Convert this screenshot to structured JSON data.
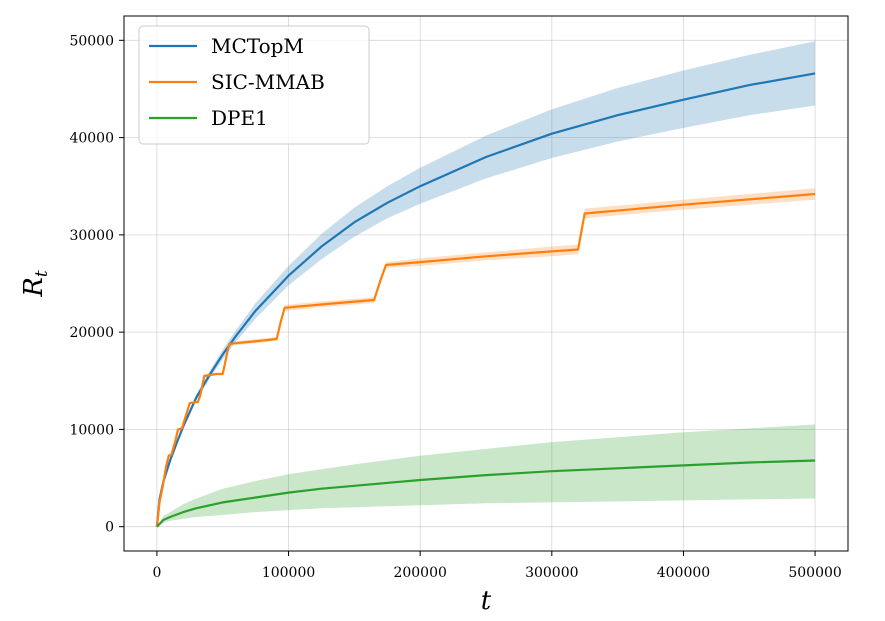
{
  "chart_data": {
    "type": "line",
    "xlabel": "t",
    "ylabel_main": "R",
    "ylabel_sub": "t",
    "xlim": [
      -25000,
      525000
    ],
    "ylim": [
      -2500,
      52500
    ],
    "xticks": [
      0,
      100000,
      200000,
      300000,
      400000,
      500000
    ],
    "xtick_labels": [
      "0",
      "100000",
      "200000",
      "300000",
      "400000",
      "500000"
    ],
    "yticks": [
      0,
      10000,
      20000,
      30000,
      40000,
      50000
    ],
    "ytick_labels": [
      "0",
      "10000",
      "20000",
      "30000",
      "40000",
      "50000"
    ],
    "grid": true,
    "legend_position": "top-left",
    "series": [
      {
        "name": "MCTopM",
        "color": "#1f77b4",
        "x": [
          0,
          2000,
          5000,
          10000,
          15000,
          20000,
          30000,
          40000,
          50000,
          60000,
          75000,
          100000,
          125000,
          150000,
          175000,
          200000,
          250000,
          300000,
          350000,
          400000,
          450000,
          500000
        ],
        "y": [
          0,
          2800,
          4700,
          6800,
          8600,
          10300,
          13300,
          15600,
          17700,
          19600,
          22200,
          25800,
          28800,
          31300,
          33300,
          35000,
          38000,
          40400,
          42300,
          43900,
          45400,
          46600
        ],
        "lower": [
          0,
          2700,
          4600,
          6700,
          8500,
          10100,
          13000,
          15200,
          17200,
          19000,
          21400,
          24800,
          27500,
          29800,
          31700,
          33200,
          35800,
          37900,
          39600,
          41000,
          42300,
          43300
        ],
        "upper": [
          0,
          2900,
          4800,
          6900,
          8800,
          10500,
          13600,
          16000,
          18200,
          20200,
          23000,
          26800,
          30100,
          32800,
          35000,
          36900,
          40200,
          42900,
          45100,
          46900,
          48500,
          49900
        ]
      },
      {
        "name": "SIC-MMAB",
        "color": "#ff7f0e",
        "x": [
          0,
          2000,
          4500,
          7000,
          9000,
          11000,
          14000,
          16000,
          19000,
          21000,
          25000,
          29000,
          31000,
          33000,
          36000,
          41000,
          45000,
          50000,
          53000,
          55000,
          70000,
          85000,
          91000,
          94000,
          97000,
          130000,
          165000,
          170000,
          174000,
          200000,
          250000,
          300000,
          320000,
          325000,
          400000,
          500000
        ],
        "y": [
          0,
          2500,
          4200,
          6200,
          7300,
          7400,
          8800,
          10000,
          10100,
          11000,
          12700,
          12800,
          12800,
          13500,
          15500,
          15600,
          15700,
          15700,
          17600,
          18800,
          19000,
          19200,
          19300,
          21000,
          22500,
          22900,
          23300,
          25400,
          26900,
          27200,
          27800,
          28300,
          28500,
          32200,
          33100,
          34200
        ],
        "lower": [
          0,
          2400,
          4100,
          6100,
          7200,
          7300,
          8700,
          9900,
          10000,
          10900,
          12600,
          12700,
          12700,
          13400,
          15400,
          15500,
          15600,
          15600,
          17500,
          18600,
          18800,
          19000,
          19100,
          20800,
          22200,
          22600,
          23000,
          25100,
          26600,
          26800,
          27400,
          27800,
          28000,
          31700,
          32600,
          33600
        ],
        "upper": [
          0,
          2600,
          4300,
          6300,
          7400,
          7500,
          8900,
          10100,
          10200,
          11100,
          12800,
          12900,
          12900,
          13600,
          15600,
          15700,
          15800,
          15800,
          17700,
          19000,
          19200,
          19400,
          19500,
          21200,
          22800,
          23200,
          23600,
          25700,
          27200,
          27600,
          28200,
          28800,
          29000,
          32700,
          33600,
          34800
        ]
      },
      {
        "name": "DPE1",
        "color": "#2ca02c",
        "x": [
          0,
          5000,
          10000,
          20000,
          30000,
          50000,
          75000,
          100000,
          125000,
          150000,
          200000,
          250000,
          300000,
          350000,
          400000,
          450000,
          500000
        ],
        "y": [
          0,
          700,
          1000,
          1500,
          1900,
          2500,
          3000,
          3500,
          3900,
          4200,
          4800,
          5300,
          5700,
          6000,
          6300,
          6600,
          6800
        ],
        "lower": [
          0,
          400,
          600,
          800,
          1000,
          1200,
          1500,
          1700,
          1900,
          2000,
          2200,
          2400,
          2500,
          2600,
          2700,
          2800,
          2900
        ],
        "upper": [
          0,
          1100,
          1500,
          2300,
          2900,
          3900,
          4700,
          5400,
          5900,
          6400,
          7300,
          8000,
          8700,
          9200,
          9700,
          10100,
          10500
        ]
      }
    ]
  }
}
